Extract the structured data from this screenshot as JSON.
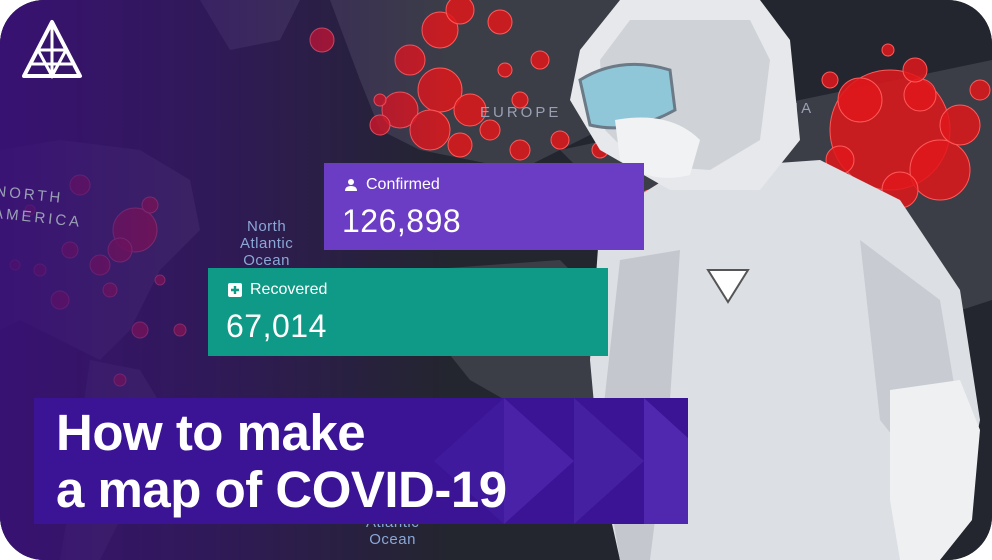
{
  "map": {
    "ocean_top": "North\nAtlantic\nOcean",
    "ocean_bottom": "Atlantic\nOcean",
    "continent_north_america": "NORTH AMERICA",
    "continent_europe": "EUROPE",
    "continent_asia": "ASIA",
    "outbreak_color": "#e0181b"
  },
  "stats": {
    "confirmed_label": "Confirmed",
    "confirmed_value": "126,898",
    "confirmed_color": "#6b3cc4",
    "recovered_label": "Recovered",
    "recovered_value": "67,014",
    "recovered_color": "#0e9a86"
  },
  "title": {
    "line1": "How to make",
    "line2": "a map of COVID-19"
  },
  "icons": {
    "logo": "triangle-logo-icon",
    "confirmed": "person-icon",
    "recovered": "medical-cross-icon"
  }
}
